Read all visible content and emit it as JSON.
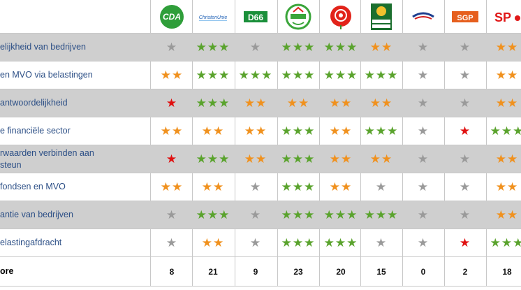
{
  "colors": {
    "green": "#5aa32d",
    "orange": "#f0911e",
    "red": "#e01010",
    "grey": "#9a9a9a"
  },
  "parties": [
    {
      "name": "CDA",
      "icon": "cda-logo"
    },
    {
      "name": "ChristenUnie",
      "icon": "christenunie-logo"
    },
    {
      "name": "D66",
      "icon": "d66-logo"
    },
    {
      "name": "GROENLINKS",
      "icon": "groenlinks-logo"
    },
    {
      "name": "",
      "icon": "pvda-rose-logo"
    },
    {
      "name": "PARTIJ VOOR DE DIEREN",
      "icon": "partij-voor-de-dieren-logo"
    },
    {
      "name": "",
      "icon": "pvv-logo"
    },
    {
      "name": "SGP",
      "icon": "sgp-logo"
    },
    {
      "name": "SP",
      "icon": "sp-logo"
    }
  ],
  "rows": [
    {
      "label": "elijkheid van bedrijven",
      "ratings": [
        "grey",
        "green",
        "grey",
        "green",
        "green",
        "orange",
        "grey",
        "grey",
        "orange"
      ]
    },
    {
      "label": "en MVO via belastingen",
      "ratings": [
        "orange",
        "green",
        "green",
        "green",
        "green",
        "green",
        "grey",
        "grey",
        "orange"
      ]
    },
    {
      "label": "antwoordelijkheid",
      "ratings": [
        "red",
        "green",
        "orange",
        "orange",
        "orange",
        "orange",
        "grey",
        "grey",
        "orange"
      ]
    },
    {
      "label": "e financiële sector",
      "ratings": [
        "orange",
        "orange",
        "orange",
        "green",
        "orange",
        "green",
        "grey",
        "red",
        "green"
      ]
    },
    {
      "label": "rwaarden verbinden aan\nsteun",
      "ratings": [
        "red",
        "green",
        "orange",
        "green",
        "orange",
        "orange",
        "grey",
        "grey",
        "orange"
      ]
    },
    {
      "label": "fondsen en MVO",
      "ratings": [
        "orange",
        "orange",
        "grey",
        "green",
        "orange",
        "grey",
        "grey",
        "grey",
        "orange"
      ]
    },
    {
      "label": "antie van bedrijven",
      "ratings": [
        "grey",
        "green",
        "grey",
        "green",
        "green",
        "green",
        "grey",
        "grey",
        "orange"
      ]
    },
    {
      "label": "elastingafdracht",
      "ratings": [
        "grey",
        "orange",
        "grey",
        "green",
        "green",
        "grey",
        "grey",
        "red",
        "green"
      ]
    }
  ],
  "score": {
    "label": "ore",
    "values": [
      "8",
      "21",
      "9",
      "23",
      "20",
      "15",
      "0",
      "2",
      "18"
    ]
  }
}
